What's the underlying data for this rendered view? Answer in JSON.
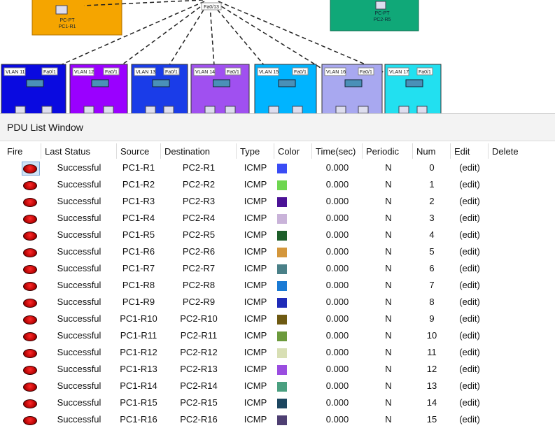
{
  "diagram": {
    "top_nodes": [
      {
        "type_label": "PC-PT",
        "name": "PC1-R1"
      },
      {
        "type_label": "PC-PT",
        "name": "PC2-R5"
      }
    ],
    "hub_label": "Fa0/13",
    "vlans": [
      "VLAN 11",
      "VLAN 12",
      "VLAN 13",
      "VLAN 14",
      "VLAN 15",
      "VLAN 16",
      "VLAN 17"
    ],
    "port_label": "Fa0/1"
  },
  "pdu_window": {
    "title": "PDU List Window",
    "columns": [
      "Fire",
      "Last Status",
      "Source",
      "Destination",
      "Type",
      "Color",
      "Time(sec)",
      "Periodic",
      "Num",
      "Edit",
      "Delete"
    ],
    "rows": [
      {
        "last_status": "Successful",
        "source": "PC1-R1",
        "destination": "PC2-R1",
        "type": "ICMP",
        "color": "#3a4cf5",
        "time": "0.000",
        "periodic": "N",
        "num": 0,
        "edit": "(edit)"
      },
      {
        "last_status": "Successful",
        "source": "PC1-R2",
        "destination": "PC2-R2",
        "type": "ICMP",
        "color": "#6ed650",
        "time": "0.000",
        "periodic": "N",
        "num": 1,
        "edit": "(edit)"
      },
      {
        "last_status": "Successful",
        "source": "PC1-R3",
        "destination": "PC2-R3",
        "type": "ICMP",
        "color": "#4b1296",
        "time": "0.000",
        "periodic": "N",
        "num": 2,
        "edit": "(edit)"
      },
      {
        "last_status": "Successful",
        "source": "PC1-R4",
        "destination": "PC2-R4",
        "type": "ICMP",
        "color": "#c9b3d9",
        "time": "0.000",
        "periodic": "N",
        "num": 3,
        "edit": "(edit)"
      },
      {
        "last_status": "Successful",
        "source": "PC1-R5",
        "destination": "PC2-R5",
        "type": "ICMP",
        "color": "#1e5e2a",
        "time": "0.000",
        "periodic": "N",
        "num": 4,
        "edit": "(edit)"
      },
      {
        "last_status": "Successful",
        "source": "PC1-R6",
        "destination": "PC2-R6",
        "type": "ICMP",
        "color": "#d4973c",
        "time": "0.000",
        "periodic": "N",
        "num": 5,
        "edit": "(edit)"
      },
      {
        "last_status": "Successful",
        "source": "PC1-R7",
        "destination": "PC2-R7",
        "type": "ICMP",
        "color": "#4a8088",
        "time": "0.000",
        "periodic": "N",
        "num": 6,
        "edit": "(edit)"
      },
      {
        "last_status": "Successful",
        "source": "PC1-R8",
        "destination": "PC2-R8",
        "type": "ICMP",
        "color": "#1a7ad4",
        "time": "0.000",
        "periodic": "N",
        "num": 7,
        "edit": "(edit)"
      },
      {
        "last_status": "Successful",
        "source": "PC1-R9",
        "destination": "PC2-R9",
        "type": "ICMP",
        "color": "#1f2bb8",
        "time": "0.000",
        "periodic": "N",
        "num": 8,
        "edit": "(edit)"
      },
      {
        "last_status": "Successful",
        "source": "PC1-R10",
        "destination": "PC2-R10",
        "type": "ICMP",
        "color": "#6e5a12",
        "time": "0.000",
        "periodic": "N",
        "num": 9,
        "edit": "(edit)"
      },
      {
        "last_status": "Successful",
        "source": "PC1-R11",
        "destination": "PC2-R11",
        "type": "ICMP",
        "color": "#6c9a3c",
        "time": "0.000",
        "periodic": "N",
        "num": 10,
        "edit": "(edit)"
      },
      {
        "last_status": "Successful",
        "source": "PC1-R12",
        "destination": "PC2-R12",
        "type": "ICMP",
        "color": "#d8dfb4",
        "time": "0.000",
        "periodic": "N",
        "num": 11,
        "edit": "(edit)"
      },
      {
        "last_status": "Successful",
        "source": "PC1-R13",
        "destination": "PC2-R13",
        "type": "ICMP",
        "color": "#9a4de0",
        "time": "0.000",
        "periodic": "N",
        "num": 12,
        "edit": "(edit)"
      },
      {
        "last_status": "Successful",
        "source": "PC1-R14",
        "destination": "PC2-R14",
        "type": "ICMP",
        "color": "#4aa080",
        "time": "0.000",
        "periodic": "N",
        "num": 13,
        "edit": "(edit)"
      },
      {
        "last_status": "Successful",
        "source": "PC1-R15",
        "destination": "PC2-R15",
        "type": "ICMP",
        "color": "#1c4660",
        "time": "0.000",
        "periodic": "N",
        "num": 14,
        "edit": "(edit)"
      },
      {
        "last_status": "Successful",
        "source": "PC1-R16",
        "destination": "PC2-R16",
        "type": "ICMP",
        "color": "#4e3f72",
        "time": "0.000",
        "periodic": "N",
        "num": 15,
        "edit": "(edit)"
      }
    ]
  }
}
